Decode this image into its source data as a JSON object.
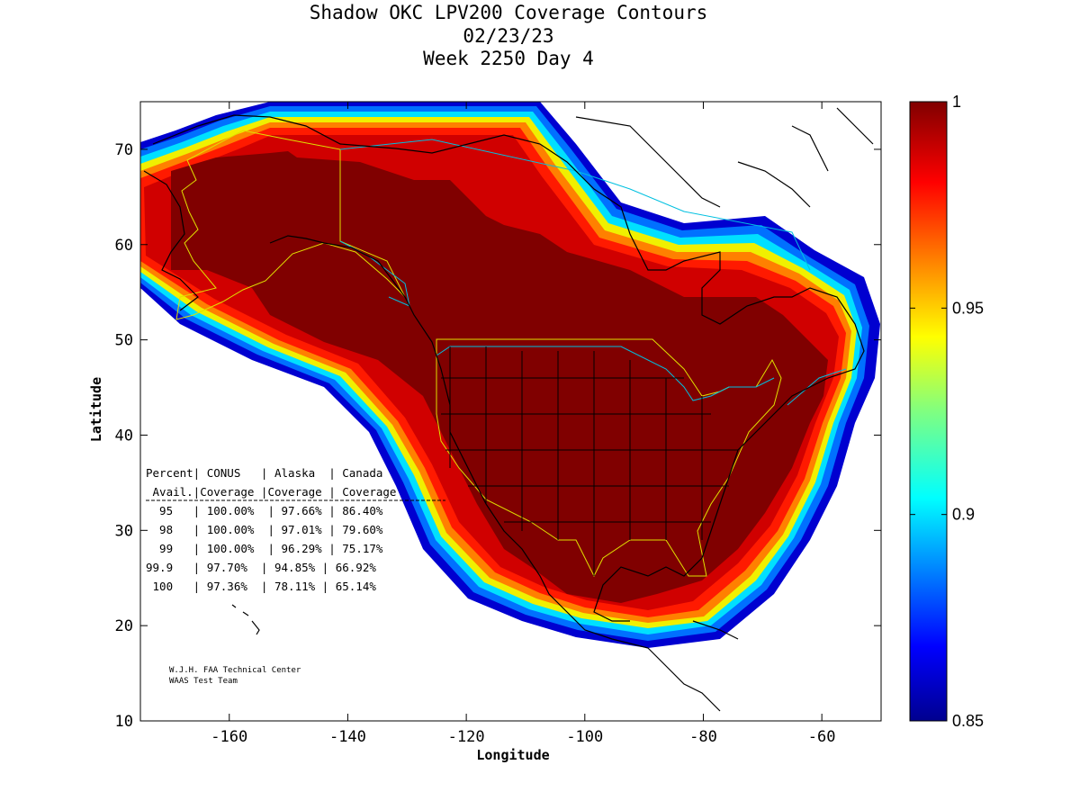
{
  "title": {
    "line1": "Shadow OKC LPV200 Coverage Contours",
    "line2": "02/23/23",
    "line3": "Week 2250 Day 4"
  },
  "axes": {
    "xlabel": "Longitude",
    "ylabel": "Latitude",
    "xlim": [
      -175,
      -50
    ],
    "ylim": [
      10,
      75
    ],
    "x_ticks": [
      "-160",
      "-140",
      "-120",
      "-100",
      "-80",
      "-60"
    ],
    "y_ticks": [
      "10",
      "20",
      "30",
      "40",
      "50",
      "60",
      "70"
    ]
  },
  "colorbar": {
    "range": [
      0.85,
      1
    ],
    "ticks": [
      "1",
      "0.95",
      "0.9",
      "0.85"
    ],
    "colormap": "jet"
  },
  "table": {
    "header1": "Percent| CONUS   | Alaska  | Canada",
    "header2": " Avail.|Coverage |Coverage | Coverage",
    "rows": [
      "  95   | 100.00%  | 97.66% | 86.40%",
      "  98   | 100.00%  | 97.01% | 79.60%",
      "  99   | 100.00%  | 96.29% | 75.17%",
      "99.9   | 97.70%  | 94.85% | 66.92%",
      " 100   | 97.36%  | 78.11% | 65.14%"
    ]
  },
  "credit": {
    "line1": "W.J.H. FAA Technical Center",
    "line2": "WAAS Test Team"
  },
  "colors": {
    "coverage_core": "#800000",
    "coverage_edge": "#0000c0",
    "state_lines": "#000000",
    "alaska_canada_border": "#e0e000",
    "us_canada_border": "#00c0e0"
  }
}
